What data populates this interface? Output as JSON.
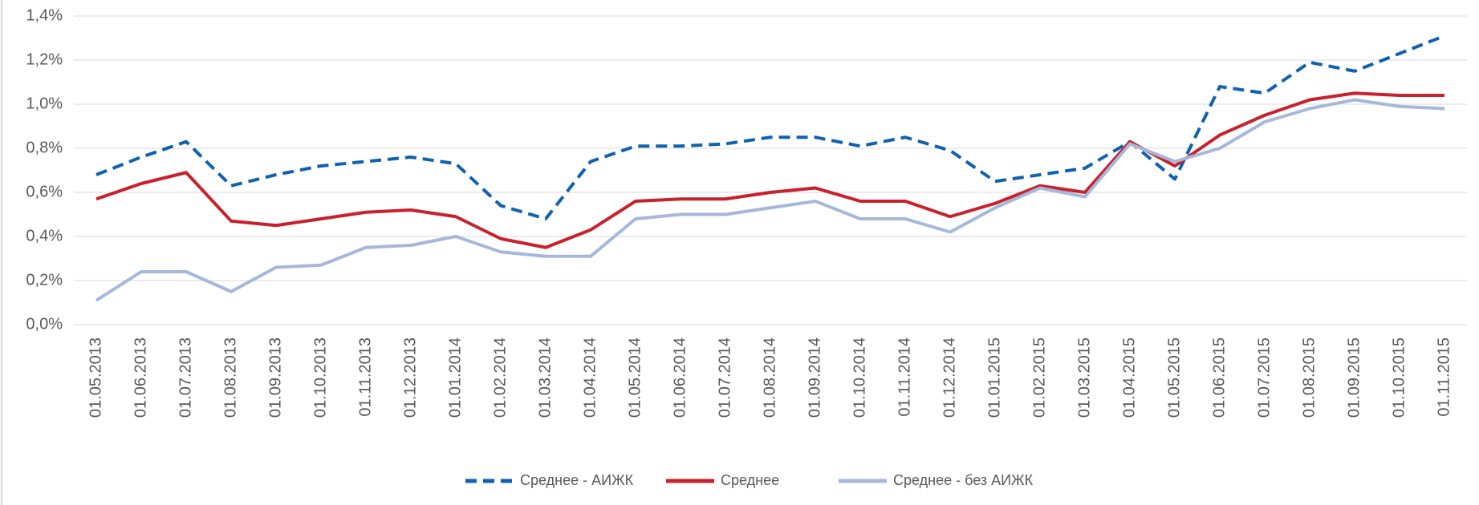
{
  "chart_data": {
    "type": "line",
    "categories": [
      "01.05.2013",
      "01.06.2013",
      "01.07.2013",
      "01.08.2013",
      "01.09.2013",
      "01.10.2013",
      "01.11.2013",
      "01.12.2013",
      "01.01.2014",
      "01.02.2014",
      "01.03.2014",
      "01.04.2014",
      "01.05.2014",
      "01.06.2014",
      "01.07.2014",
      "01.08.2014",
      "01.09.2014",
      "01.10.2014",
      "01.11.2014",
      "01.12.2014",
      "01.01.2015",
      "01.02.2015",
      "01.03.2015",
      "01.04.2015",
      "01.05.2015",
      "01.06.2015",
      "01.07.2015",
      "01.08.2015",
      "01.09.2015",
      "01.10.2015",
      "01.11.2015"
    ],
    "series": [
      {
        "name": "Среднее - АИЖК",
        "color": "#0e62ae",
        "dashed": true,
        "values": [
          0.68,
          0.76,
          0.83,
          0.63,
          0.68,
          0.72,
          0.74,
          0.76,
          0.73,
          0.54,
          0.48,
          0.74,
          0.81,
          0.81,
          0.82,
          0.85,
          0.85,
          0.81,
          0.85,
          0.79,
          0.65,
          0.68,
          0.71,
          0.83,
          0.66,
          1.08,
          1.05,
          1.19,
          1.15,
          1.23,
          1.31
        ]
      },
      {
        "name": "Среднее",
        "color": "#c8202c",
        "dashed": false,
        "values": [
          0.57,
          0.64,
          0.69,
          0.47,
          0.45,
          0.48,
          0.51,
          0.52,
          0.49,
          0.39,
          0.35,
          0.43,
          0.56,
          0.57,
          0.57,
          0.6,
          0.62,
          0.56,
          0.56,
          0.49,
          0.55,
          0.63,
          0.6,
          0.83,
          0.72,
          0.86,
          0.95,
          1.02,
          1.05,
          1.04,
          1.04
        ]
      },
      {
        "name": "Среднее - без АИЖК",
        "color": "#a5b8da",
        "dashed": false,
        "values": [
          0.11,
          0.24,
          0.24,
          0.15,
          0.26,
          0.27,
          0.35,
          0.36,
          0.4,
          0.33,
          0.31,
          0.31,
          0.48,
          0.5,
          0.5,
          0.53,
          0.56,
          0.48,
          0.48,
          0.42,
          0.53,
          0.62,
          0.58,
          0.82,
          0.74,
          0.8,
          0.92,
          0.98,
          1.02,
          0.99,
          0.98
        ]
      }
    ],
    "ylim": [
      0,
      1.4
    ],
    "yticks": [
      {
        "value": 0,
        "label": "0,0%"
      },
      {
        "value": 0.2,
        "label": "0,2%"
      },
      {
        "value": 0.4,
        "label": "0,4%"
      },
      {
        "value": 0.6,
        "label": "0,6%"
      },
      {
        "value": 0.8,
        "label": "0,8%"
      },
      {
        "value": 1.0,
        "label": "1,0%"
      },
      {
        "value": 1.2,
        "label": "1,2%"
      },
      {
        "value": 1.4,
        "label": "1,4%"
      }
    ],
    "grid": true,
    "legend": "bottom"
  }
}
